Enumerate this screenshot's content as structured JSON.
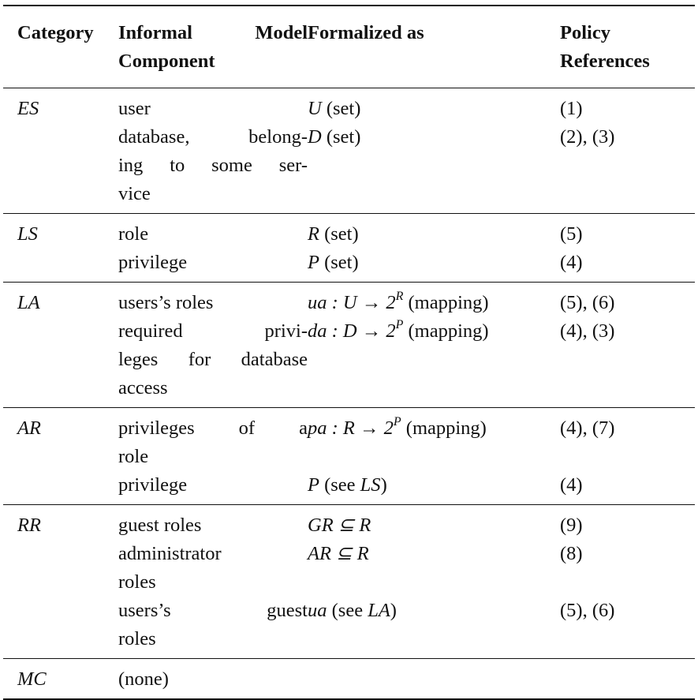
{
  "header": {
    "category": "Category",
    "component_l1": "Informal Model",
    "component_l2": "Component",
    "formalized": "Formalized as",
    "policy_l1": "Policy",
    "policy_l2": "References"
  },
  "rows": [
    {
      "category": "ES",
      "components": [
        {
          "lines": [
            "user"
          ]
        },
        {
          "lines": [
            "database, belong-",
            "ing to some ser-",
            "vice"
          ]
        }
      ],
      "formalized": [
        {
          "math": "U",
          "text": " (set)"
        },
        {
          "math": "D",
          "text": " (set)"
        }
      ],
      "refs": [
        "(1)",
        "(2), (3)"
      ]
    },
    {
      "category": "LS",
      "components": [
        {
          "lines": [
            "role"
          ]
        },
        {
          "lines": [
            "privilege"
          ]
        }
      ],
      "formalized": [
        {
          "math": "R",
          "text": " (set)"
        },
        {
          "math": "P",
          "text": " (set)"
        }
      ],
      "refs": [
        "(5)",
        "(4)"
      ]
    },
    {
      "category": "LA",
      "components": [
        {
          "lines": [
            "users’s roles"
          ]
        },
        {
          "lines": [
            "required privi-",
            "leges for database",
            "access"
          ]
        }
      ],
      "formalized": [
        {
          "math": "ua : U → 2",
          "sup": "R",
          "text": " (mapping)"
        },
        {
          "math": "da : D → 2",
          "sup": "P",
          "text": " (mapping)"
        }
      ],
      "refs": [
        "(5), (6)",
        "(4), (3)"
      ]
    },
    {
      "category": "AR",
      "components": [
        {
          "lines": [
            "privileges of a",
            "role"
          ]
        },
        {
          "lines": [
            "privilege"
          ]
        }
      ],
      "formalized": [
        {
          "math": "pa : R → 2",
          "sup": "P",
          "text": " (mapping)"
        },
        {
          "math": "P",
          "text": " (see ",
          "ital": "LS",
          "text2": ")"
        }
      ],
      "refs": [
        "(4), (7)",
        "(4)"
      ]
    },
    {
      "category": "RR",
      "components": [
        {
          "lines": [
            "guest roles"
          ]
        },
        {
          "lines": [
            "administrator",
            "roles"
          ]
        },
        {
          "lines": [
            "users’s guest",
            "roles"
          ]
        }
      ],
      "formalized": [
        {
          "math": "GR ⊆ R"
        },
        {
          "math": "AR ⊆ R"
        },
        {
          "math": "ua",
          "text": " (see ",
          "ital": "LA",
          "text2": ")"
        }
      ],
      "refs": [
        "(9)",
        "(8)",
        "(5), (6)"
      ]
    },
    {
      "category": "MC",
      "components": [
        {
          "lines": [
            "(none)"
          ]
        }
      ],
      "formalized": [],
      "refs": []
    }
  ]
}
